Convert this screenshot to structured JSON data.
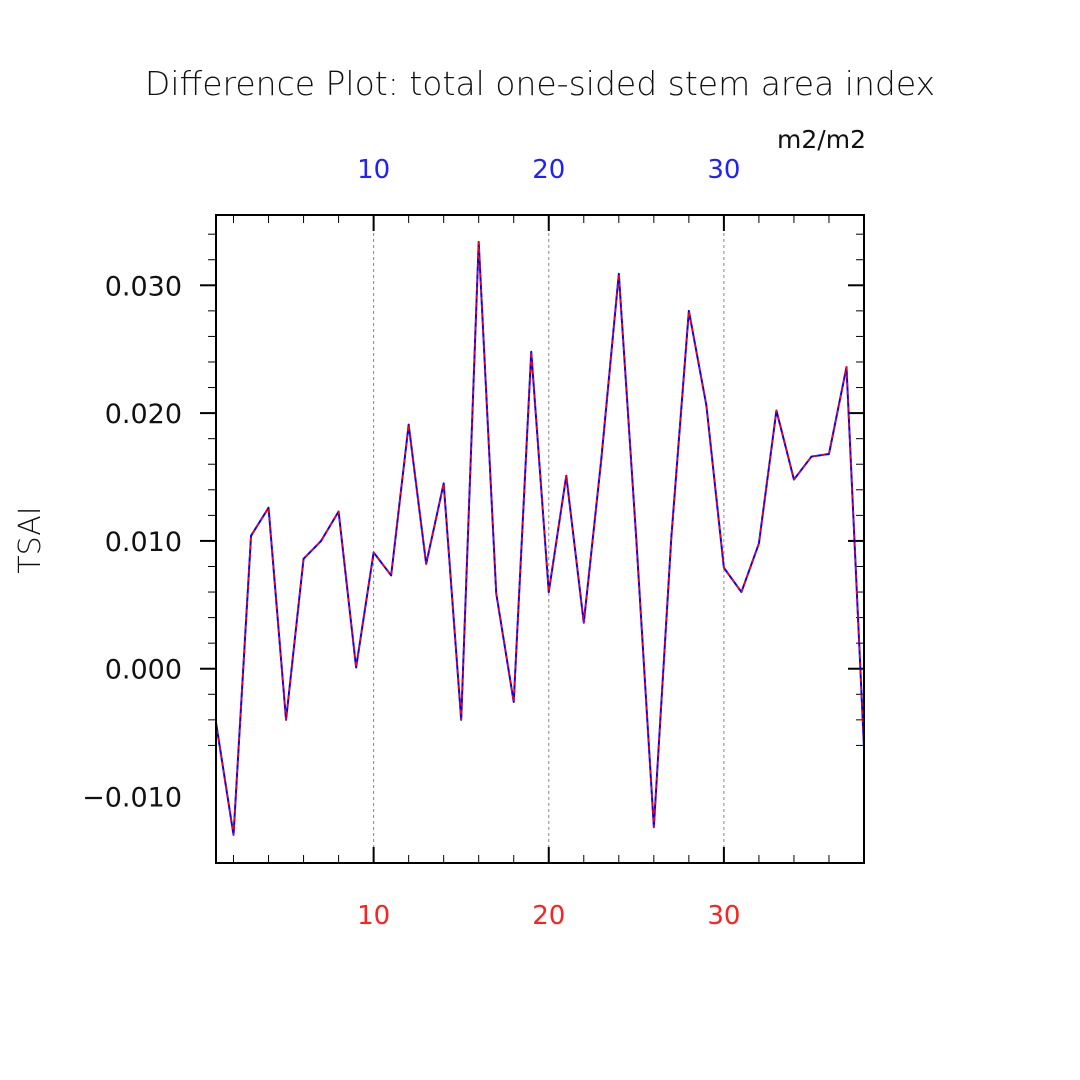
{
  "chart_data": {
    "type": "line",
    "title": "Difference Plot: total one-sided stem area index",
    "units": "m2/m2",
    "ylabel": "TSAI",
    "xlabel": "",
    "xlim": [
      1,
      38
    ],
    "ylim": [
      -0.0152,
      0.0355
    ],
    "x_major_ticks": [
      10,
      20,
      30
    ],
    "y_major_ticks": [
      -0.01,
      0.0,
      0.01,
      0.02,
      0.03
    ],
    "y_tick_labels": [
      "−0.010",
      "0.000",
      "0.010",
      "0.020",
      "0.030"
    ],
    "x_tick_labels_top": [
      "10",
      "20",
      "30"
    ],
    "x_tick_labels_bottom": [
      "10",
      "20",
      "30"
    ],
    "grid": "vertical dashed at major x ticks",
    "colors": {
      "series_blue": "#0000ff",
      "series_red": "#ff0000",
      "top_axis_labels": "#2020ff",
      "bottom_axis_labels": "#ff2020",
      "grid": "#888888"
    },
    "x": [
      1,
      2,
      3,
      4,
      5,
      6,
      7,
      8,
      9,
      10,
      11,
      12,
      13,
      14,
      15,
      16,
      17,
      18,
      19,
      20,
      21,
      22,
      23,
      24,
      25,
      26,
      27,
      28,
      29,
      30,
      31,
      32,
      33,
      34,
      35,
      36,
      37,
      38
    ],
    "series": [
      {
        "style": "dashed-red-over-blue",
        "values": [
          -0.0042,
          -0.013,
          0.0104,
          0.0126,
          -0.004,
          0.0086,
          0.01,
          0.0123,
          0.0001,
          0.0091,
          0.0073,
          0.0191,
          0.0082,
          0.0145,
          -0.004,
          0.0334,
          0.0059,
          -0.0026,
          0.0248,
          0.006,
          0.0151,
          0.0036,
          0.0164,
          0.0309,
          0.0101,
          -0.0124,
          0.0103,
          0.028,
          0.0206,
          0.0079,
          0.006,
          0.0098,
          0.0202,
          0.0148,
          0.0166,
          0.0168,
          0.0236,
          -0.0062
        ]
      }
    ]
  }
}
